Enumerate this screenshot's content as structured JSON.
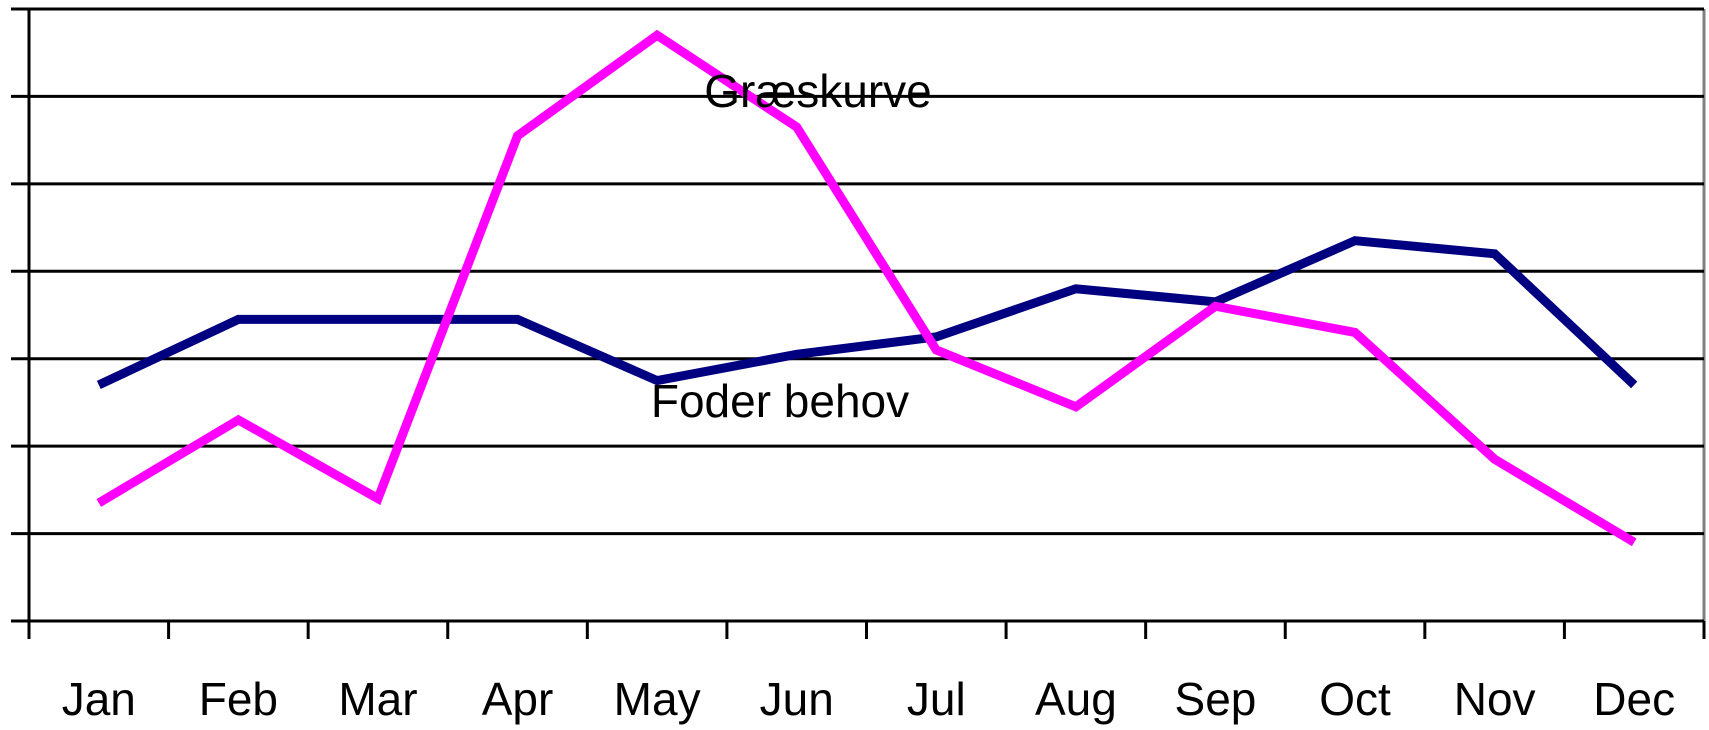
{
  "chart_data": {
    "type": "line",
    "categories": [
      "Jan",
      "Feb",
      "Mar",
      "Apr",
      "May",
      "Jun",
      "Jul",
      "Aug",
      "Sep",
      "Oct",
      "Nov",
      "Dec"
    ],
    "series": [
      {
        "name": "Foder behov",
        "color": "#000080",
        "values": [
          2.7,
          3.45,
          3.45,
          3.45,
          2.75,
          3.05,
          3.25,
          3.8,
          3.65,
          4.35,
          4.2,
          2.7
        ]
      },
      {
        "name": "Græskurve",
        "color": "#ff00ff",
        "values": [
          1.35,
          2.3,
          1.4,
          5.55,
          6.7,
          5.65,
          3.1,
          2.45,
          3.6,
          3.3,
          1.85,
          0.9
        ]
      }
    ],
    "ylim": [
      0,
      7
    ],
    "yticks": [
      0,
      1,
      2,
      3,
      4,
      5,
      6,
      7
    ],
    "grid": true
  }
}
